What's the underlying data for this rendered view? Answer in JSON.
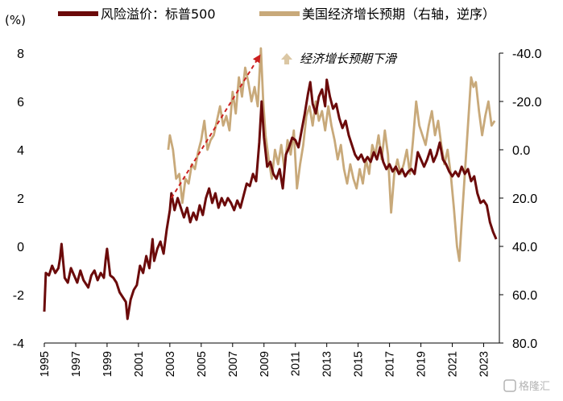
{
  "chart_data": {
    "type": "line",
    "left_unit": "(%)",
    "legend_position": "top",
    "annotation": "经济增长预期下滑",
    "watermark": "格隆汇",
    "left_axis": {
      "min": -4,
      "max": 8,
      "ticks": [
        "-4",
        "-2",
        "0",
        "2",
        "4",
        "6",
        "8"
      ]
    },
    "right_axis": {
      "min": -40,
      "max": 80,
      "inverted": true,
      "ticks": [
        "-40.0",
        "-20.0",
        "0.0",
        "20.0",
        "40.0",
        "60.0",
        "80.0"
      ]
    },
    "x_axis": {
      "min": 1995,
      "max": 2024,
      "ticks": [
        "1995",
        "1997",
        "1999",
        "2001",
        "2003",
        "2005",
        "2007",
        "2009",
        "2011",
        "2013",
        "2015",
        "2017",
        "2019",
        "2021",
        "2023"
      ]
    },
    "arrow": {
      "from": [
        2003.1,
        2.0
      ],
      "to": [
        2008.8,
        8.0
      ]
    },
    "colors": {
      "risk_premium": "#6b0a0a",
      "growth_expectation": "#c8a97a",
      "arrow": "#cc1f1f",
      "annotation_marker": "#dbc7a4"
    },
    "series": [
      {
        "name": "风险溢价：标普500",
        "axis": "left",
        "points": [
          [
            1995.0,
            -2.7
          ],
          [
            1995.1,
            -1.1
          ],
          [
            1995.3,
            -1.2
          ],
          [
            1995.5,
            -0.8
          ],
          [
            1995.7,
            -1.1
          ],
          [
            1995.9,
            -0.9
          ],
          [
            1996.0,
            -0.5
          ],
          [
            1996.1,
            0.1
          ],
          [
            1996.3,
            -1.3
          ],
          [
            1996.5,
            -1.5
          ],
          [
            1996.7,
            -0.9
          ],
          [
            1996.9,
            -1.2
          ],
          [
            1997.1,
            -1.5
          ],
          [
            1997.3,
            -1.0
          ],
          [
            1997.5,
            -1.4
          ],
          [
            1997.8,
            -1.7
          ],
          [
            1998.0,
            -1.2
          ],
          [
            1998.2,
            -1.0
          ],
          [
            1998.4,
            -1.4
          ],
          [
            1998.6,
            -1.1
          ],
          [
            1998.8,
            -1.3
          ],
          [
            1998.9,
            -0.6
          ],
          [
            1999.0,
            -0.1
          ],
          [
            1999.2,
            -1.2
          ],
          [
            1999.4,
            -1.3
          ],
          [
            1999.6,
            -1.5
          ],
          [
            1999.8,
            -1.9
          ],
          [
            2000.0,
            -2.1
          ],
          [
            2000.2,
            -2.3
          ],
          [
            2000.3,
            -3.0
          ],
          [
            2000.5,
            -2.2
          ],
          [
            2000.7,
            -1.8
          ],
          [
            2000.9,
            -1.6
          ],
          [
            2001.1,
            -0.8
          ],
          [
            2001.3,
            -1.1
          ],
          [
            2001.5,
            -0.4
          ],
          [
            2001.7,
            -0.9
          ],
          [
            2001.9,
            0.3
          ],
          [
            2002.0,
            -0.6
          ],
          [
            2002.2,
            -0.1
          ],
          [
            2002.4,
            0.2
          ],
          [
            2002.6,
            -0.3
          ],
          [
            2002.8,
            0.7
          ],
          [
            2003.0,
            1.5
          ],
          [
            2003.1,
            2.2
          ],
          [
            2003.3,
            1.5
          ],
          [
            2003.5,
            2.0
          ],
          [
            2003.7,
            1.6
          ],
          [
            2003.9,
            1.2
          ],
          [
            2004.1,
            1.6
          ],
          [
            2004.3,
            1.0
          ],
          [
            2004.5,
            1.4
          ],
          [
            2004.7,
            1.1
          ],
          [
            2004.9,
            1.7
          ],
          [
            2005.1,
            1.3
          ],
          [
            2005.3,
            2.0
          ],
          [
            2005.5,
            2.4
          ],
          [
            2005.7,
            1.8
          ],
          [
            2005.9,
            2.2
          ],
          [
            2006.1,
            1.6
          ],
          [
            2006.3,
            2.0
          ],
          [
            2006.5,
            1.7
          ],
          [
            2006.7,
            2.0
          ],
          [
            2006.9,
            1.8
          ],
          [
            2007.1,
            1.5
          ],
          [
            2007.3,
            1.9
          ],
          [
            2007.5,
            1.6
          ],
          [
            2007.7,
            2.1
          ],
          [
            2007.9,
            2.6
          ],
          [
            2008.1,
            2.5
          ],
          [
            2008.3,
            3.0
          ],
          [
            2008.5,
            2.7
          ],
          [
            2008.7,
            4.3
          ],
          [
            2008.85,
            6.0
          ],
          [
            2009.0,
            4.5
          ],
          [
            2009.2,
            3.3
          ],
          [
            2009.4,
            3.5
          ],
          [
            2009.6,
            3.0
          ],
          [
            2009.8,
            2.8
          ],
          [
            2010.0,
            3.2
          ],
          [
            2010.2,
            2.4
          ],
          [
            2010.4,
            3.8
          ],
          [
            2010.6,
            4.1
          ],
          [
            2010.8,
            4.5
          ],
          [
            2011.0,
            4.4
          ],
          [
            2011.2,
            4.1
          ],
          [
            2011.4,
            4.8
          ],
          [
            2011.6,
            5.5
          ],
          [
            2011.8,
            6.3
          ],
          [
            2011.95,
            6.8
          ],
          [
            2012.1,
            5.9
          ],
          [
            2012.3,
            5.5
          ],
          [
            2012.5,
            6.2
          ],
          [
            2012.7,
            6.5
          ],
          [
            2012.9,
            5.8
          ],
          [
            2013.0,
            6.9
          ],
          [
            2013.2,
            6.2
          ],
          [
            2013.4,
            5.7
          ],
          [
            2013.6,
            5.9
          ],
          [
            2013.8,
            5.3
          ],
          [
            2014.0,
            4.9
          ],
          [
            2014.2,
            5.2
          ],
          [
            2014.4,
            4.6
          ],
          [
            2014.6,
            4.2
          ],
          [
            2014.8,
            3.8
          ],
          [
            2015.0,
            3.6
          ],
          [
            2015.2,
            3.8
          ],
          [
            2015.4,
            3.5
          ],
          [
            2015.6,
            3.7
          ],
          [
            2015.8,
            3.5
          ],
          [
            2016.0,
            3.9
          ],
          [
            2016.2,
            3.6
          ],
          [
            2016.4,
            4.1
          ],
          [
            2016.6,
            3.5
          ],
          [
            2016.8,
            3.2
          ],
          [
            2017.0,
            3.4
          ],
          [
            2017.2,
            3.1
          ],
          [
            2017.4,
            3.3
          ],
          [
            2017.6,
            3.0
          ],
          [
            2017.8,
            3.2
          ],
          [
            2018.0,
            2.9
          ],
          [
            2018.2,
            3.1
          ],
          [
            2018.4,
            3.2
          ],
          [
            2018.6,
            3.0
          ],
          [
            2018.8,
            3.9
          ],
          [
            2019.0,
            3.6
          ],
          [
            2019.2,
            3.3
          ],
          [
            2019.4,
            3.6
          ],
          [
            2019.6,
            4.0
          ],
          [
            2019.8,
            3.5
          ],
          [
            2020.0,
            3.8
          ],
          [
            2020.2,
            4.3
          ],
          [
            2020.4,
            3.6
          ],
          [
            2020.6,
            3.4
          ],
          [
            2020.8,
            3.1
          ],
          [
            2021.0,
            2.9
          ],
          [
            2021.2,
            3.1
          ],
          [
            2021.4,
            2.9
          ],
          [
            2021.6,
            3.3
          ],
          [
            2021.8,
            3.0
          ],
          [
            2022.0,
            3.2
          ],
          [
            2022.2,
            2.7
          ],
          [
            2022.4,
            2.9
          ],
          [
            2022.6,
            2.2
          ],
          [
            2022.8,
            1.8
          ],
          [
            2023.0,
            1.9
          ],
          [
            2023.2,
            1.7
          ],
          [
            2023.4,
            1.0
          ],
          [
            2023.6,
            0.6
          ],
          [
            2023.8,
            0.3
          ]
        ]
      },
      {
        "name": "美国经济增长预期（右轴，逆序）",
        "axis": "right",
        "points": [
          [
            2002.9,
            0.0
          ],
          [
            2003.0,
            -6.0
          ],
          [
            2003.2,
            0.0
          ],
          [
            2003.4,
            12.0
          ],
          [
            2003.6,
            10.0
          ],
          [
            2003.8,
            22.0
          ],
          [
            2004.0,
            12.0
          ],
          [
            2004.2,
            14.0
          ],
          [
            2004.4,
            6.0
          ],
          [
            2004.6,
            8.0
          ],
          [
            2004.8,
            1.0
          ],
          [
            2005.0,
            -4.0
          ],
          [
            2005.2,
            -12.0
          ],
          [
            2005.4,
            0.0
          ],
          [
            2005.6,
            -4.0
          ],
          [
            2005.8,
            -6.0
          ],
          [
            2006.0,
            -12.0
          ],
          [
            2006.2,
            -18.0
          ],
          [
            2006.4,
            -10.0
          ],
          [
            2006.6,
            -14.0
          ],
          [
            2006.8,
            -8.0
          ],
          [
            2007.0,
            -24.0
          ],
          [
            2007.2,
            -15.0
          ],
          [
            2007.4,
            -30.0
          ],
          [
            2007.6,
            -22.0
          ],
          [
            2007.8,
            -34.0
          ],
          [
            2008.0,
            -28.0
          ],
          [
            2008.2,
            -20.0
          ],
          [
            2008.4,
            -26.0
          ],
          [
            2008.6,
            -18.0
          ],
          [
            2008.8,
            -42.0
          ],
          [
            2008.95,
            -20.0
          ],
          [
            2009.1,
            -6.0
          ],
          [
            2009.3,
            4.0
          ],
          [
            2009.5,
            12.0
          ],
          [
            2009.7,
            0.0
          ],
          [
            2009.9,
            6.0
          ],
          [
            2010.1,
            -2.0
          ],
          [
            2010.3,
            8.0
          ],
          [
            2010.5,
            -4.0
          ],
          [
            2010.7,
            2.0
          ],
          [
            2010.9,
            -8.0
          ],
          [
            2011.1,
            16.0
          ],
          [
            2011.3,
            6.0
          ],
          [
            2011.5,
            -2.0
          ],
          [
            2011.7,
            -14.0
          ],
          [
            2011.9,
            -18.0
          ],
          [
            2012.1,
            -10.0
          ],
          [
            2012.3,
            -20.0
          ],
          [
            2012.5,
            -12.0
          ],
          [
            2012.7,
            -16.0
          ],
          [
            2012.9,
            -8.0
          ],
          [
            2013.1,
            -18.0
          ],
          [
            2013.3,
            -10.0
          ],
          [
            2013.5,
            -4.0
          ],
          [
            2013.7,
            4.0
          ],
          [
            2013.9,
            -2.0
          ],
          [
            2014.1,
            8.0
          ],
          [
            2014.3,
            14.0
          ],
          [
            2014.5,
            6.0
          ],
          [
            2014.7,
            12.0
          ],
          [
            2014.9,
            16.0
          ],
          [
            2015.1,
            8.0
          ],
          [
            2015.3,
            14.0
          ],
          [
            2015.5,
            4.0
          ],
          [
            2015.7,
            10.0
          ],
          [
            2015.9,
            -2.0
          ],
          [
            2016.1,
            2.0
          ],
          [
            2016.3,
            -6.0
          ],
          [
            2016.5,
            4.0
          ],
          [
            2016.7,
            -8.0
          ],
          [
            2016.9,
            2.0
          ],
          [
            2017.1,
            26.0
          ],
          [
            2017.3,
            10.0
          ],
          [
            2017.5,
            4.0
          ],
          [
            2017.7,
            10.0
          ],
          [
            2017.9,
            6.0
          ],
          [
            2018.1,
            0.0
          ],
          [
            2018.3,
            10.0
          ],
          [
            2018.5,
            -4.0
          ],
          [
            2018.7,
            -20.0
          ],
          [
            2018.9,
            -10.0
          ],
          [
            2019.1,
            -6.0
          ],
          [
            2019.3,
            -2.0
          ],
          [
            2019.5,
            -10.0
          ],
          [
            2019.7,
            -16.0
          ],
          [
            2019.9,
            -6.0
          ],
          [
            2020.1,
            -12.0
          ],
          [
            2020.3,
            -2.0
          ],
          [
            2020.5,
            6.0
          ],
          [
            2020.7,
            0.0
          ],
          [
            2020.9,
            10.0
          ],
          [
            2021.1,
            24.0
          ],
          [
            2021.3,
            40.0
          ],
          [
            2021.45,
            46.0
          ],
          [
            2021.6,
            30.0
          ],
          [
            2021.8,
            10.0
          ],
          [
            2022.0,
            -10.0
          ],
          [
            2022.2,
            -30.0
          ],
          [
            2022.35,
            -26.0
          ],
          [
            2022.5,
            -28.0
          ],
          [
            2022.7,
            -16.0
          ],
          [
            2022.9,
            -6.0
          ],
          [
            2023.1,
            -14.0
          ],
          [
            2023.3,
            -20.0
          ],
          [
            2023.5,
            -10.0
          ],
          [
            2023.7,
            -12.0
          ]
        ]
      }
    ]
  }
}
